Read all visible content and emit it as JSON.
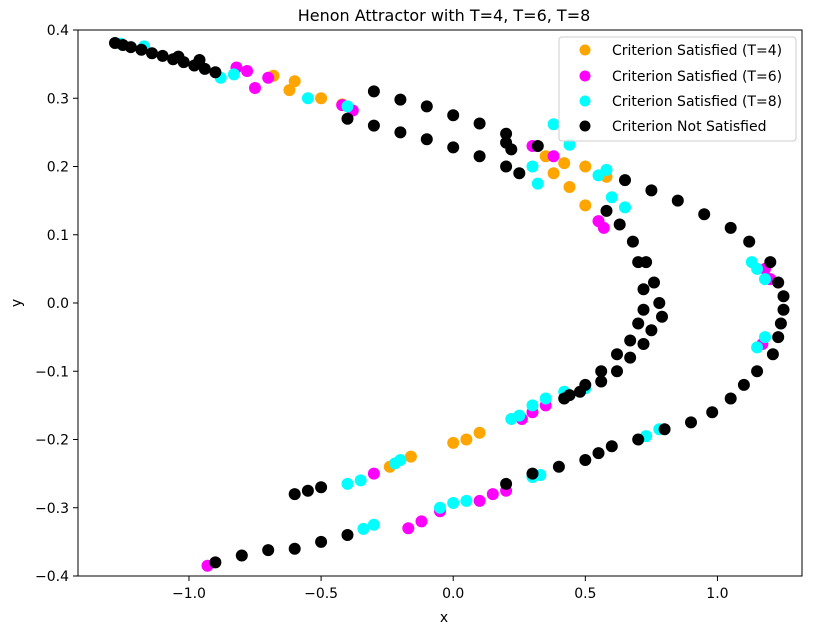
{
  "chart_data": {
    "type": "scatter",
    "title": "Henon Attractor with T=4, T=6, T=8",
    "xlabel": "x",
    "ylabel": "y",
    "xlim": [
      -1.42,
      1.32
    ],
    "ylim": [
      -0.4,
      0.4
    ],
    "x_ticks": [
      -1.0,
      -0.5,
      0.0,
      0.5,
      1.0
    ],
    "x_tick_labels": [
      "−1.0",
      "−0.5",
      "0.0",
      "0.5",
      "1.0"
    ],
    "y_ticks": [
      -0.4,
      -0.3,
      -0.2,
      -0.1,
      0.0,
      0.1,
      0.2,
      0.3,
      0.4
    ],
    "y_tick_labels": [
      "−0.4",
      "−0.3",
      "−0.2",
      "−0.1",
      "0.0",
      "0.1",
      "0.2",
      "0.3",
      "0.4"
    ],
    "grid": false,
    "legend_position": "top-right",
    "series": [
      {
        "name": "Criterion Satisfied (T=4)",
        "color": "#ffa500",
        "points": [
          [
            -0.68,
            0.333
          ],
          [
            -0.6,
            0.325
          ],
          [
            -0.62,
            0.312
          ],
          [
            -0.5,
            0.3
          ],
          [
            -0.42,
            0.291
          ],
          [
            0.35,
            0.215
          ],
          [
            0.42,
            0.205
          ],
          [
            0.5,
            0.2
          ],
          [
            0.58,
            0.185
          ],
          [
            0.38,
            0.19
          ],
          [
            0.44,
            0.17
          ],
          [
            0.5,
            0.143
          ],
          [
            -0.24,
            -0.24
          ],
          [
            -0.16,
            -0.225
          ],
          [
            0.0,
            -0.205
          ],
          [
            0.05,
            -0.2
          ],
          [
            0.1,
            -0.19
          ]
        ]
      },
      {
        "name": "Criterion Satisfied (T=6)",
        "color": "#ff00ff",
        "points": [
          [
            -0.93,
            -0.385
          ],
          [
            -0.3,
            -0.25
          ],
          [
            -0.7,
            0.33
          ],
          [
            -0.78,
            0.34
          ],
          [
            -0.82,
            0.345
          ],
          [
            -0.75,
            0.315
          ],
          [
            -0.38,
            0.282
          ],
          [
            -0.42,
            0.29
          ],
          [
            0.3,
            0.23
          ],
          [
            0.38,
            0.215
          ],
          [
            1.2,
            0.035
          ],
          [
            1.18,
            0.05
          ],
          [
            1.17,
            -0.06
          ],
          [
            0.55,
            0.12
          ],
          [
            0.57,
            0.11
          ],
          [
            0.3,
            -0.16
          ],
          [
            0.35,
            -0.15
          ],
          [
            0.26,
            -0.17
          ],
          [
            -0.17,
            -0.33
          ],
          [
            -0.12,
            -0.32
          ],
          [
            -0.05,
            -0.305
          ],
          [
            0.1,
            -0.29
          ],
          [
            0.15,
            -0.28
          ],
          [
            0.2,
            -0.275
          ]
        ]
      },
      {
        "name": "Criterion Satisfied (T=8)",
        "color": "#00ffff",
        "points": [
          [
            -1.26,
            0.38
          ],
          [
            -1.17,
            0.376
          ],
          [
            -0.83,
            0.335
          ],
          [
            -0.88,
            0.33
          ],
          [
            -0.55,
            0.3
          ],
          [
            -0.4,
            0.288
          ],
          [
            0.38,
            0.262
          ],
          [
            0.44,
            0.232
          ],
          [
            0.3,
            0.2
          ],
          [
            0.32,
            0.175
          ],
          [
            0.55,
            0.187
          ],
          [
            0.58,
            0.195
          ],
          [
            0.6,
            0.155
          ],
          [
            0.65,
            0.14
          ],
          [
            1.13,
            0.06
          ],
          [
            1.15,
            0.05
          ],
          [
            1.18,
            0.035
          ],
          [
            1.15,
            -0.065
          ],
          [
            1.18,
            -0.05
          ],
          [
            0.73,
            -0.195
          ],
          [
            0.78,
            -0.185
          ],
          [
            0.22,
            -0.17
          ],
          [
            0.25,
            -0.165
          ],
          [
            0.3,
            -0.15
          ],
          [
            0.35,
            -0.14
          ],
          [
            0.42,
            -0.13
          ],
          [
            0.5,
            -0.125
          ],
          [
            -0.4,
            -0.265
          ],
          [
            -0.35,
            -0.26
          ],
          [
            -0.22,
            -0.235
          ],
          [
            -0.2,
            -0.23
          ],
          [
            -0.34,
            -0.331
          ],
          [
            -0.3,
            -0.325
          ],
          [
            -0.05,
            -0.3
          ],
          [
            0.0,
            -0.293
          ],
          [
            0.05,
            -0.29
          ],
          [
            0.3,
            -0.255
          ],
          [
            0.33,
            -0.252
          ]
        ]
      },
      {
        "name": "Criterion Not Satisfied",
        "color": "#000000",
        "points": [
          [
            -1.28,
            0.381
          ],
          [
            -1.25,
            0.378
          ],
          [
            -1.22,
            0.375
          ],
          [
            -1.18,
            0.371
          ],
          [
            -1.14,
            0.366
          ],
          [
            -1.1,
            0.362
          ],
          [
            -1.06,
            0.357
          ],
          [
            -1.02,
            0.353
          ],
          [
            -0.98,
            0.348
          ],
          [
            -0.94,
            0.343
          ],
          [
            -0.9,
            0.338
          ],
          [
            -1.04,
            0.361
          ],
          [
            -0.96,
            0.356
          ],
          [
            -0.3,
            0.31
          ],
          [
            -0.2,
            0.298
          ],
          [
            -0.1,
            0.288
          ],
          [
            0.0,
            0.275
          ],
          [
            0.1,
            0.263
          ],
          [
            0.2,
            0.248
          ],
          [
            -0.4,
            0.27
          ],
          [
            -0.3,
            0.26
          ],
          [
            -0.2,
            0.25
          ],
          [
            -0.1,
            0.24
          ],
          [
            0.0,
            0.228
          ],
          [
            0.1,
            0.215
          ],
          [
            0.2,
            0.2
          ],
          [
            0.25,
            0.19
          ],
          [
            0.32,
            0.23
          ],
          [
            0.2,
            0.235
          ],
          [
            0.22,
            0.225
          ],
          [
            0.65,
            0.18
          ],
          [
            0.75,
            0.165
          ],
          [
            0.85,
            0.15
          ],
          [
            0.95,
            0.13
          ],
          [
            1.05,
            0.11
          ],
          [
            1.12,
            0.09
          ],
          [
            1.2,
            0.06
          ],
          [
            1.23,
            0.03
          ],
          [
            1.25,
            0.01
          ],
          [
            1.25,
            -0.01
          ],
          [
            1.24,
            -0.03
          ],
          [
            1.23,
            -0.05
          ],
          [
            1.21,
            -0.075
          ],
          [
            1.15,
            -0.1
          ],
          [
            1.1,
            -0.12
          ],
          [
            1.05,
            -0.14
          ],
          [
            0.98,
            -0.16
          ],
          [
            0.9,
            -0.175
          ],
          [
            0.8,
            -0.185
          ],
          [
            0.7,
            -0.2
          ],
          [
            0.6,
            -0.21
          ],
          [
            0.55,
            -0.22
          ],
          [
            0.5,
            -0.23
          ],
          [
            0.4,
            -0.24
          ],
          [
            0.3,
            -0.25
          ],
          [
            0.2,
            -0.265
          ],
          [
            -0.6,
            -0.36
          ],
          [
            -0.5,
            -0.35
          ],
          [
            -0.4,
            -0.34
          ],
          [
            -0.7,
            -0.362
          ],
          [
            -0.8,
            -0.37
          ],
          [
            -0.9,
            -0.38
          ],
          [
            0.58,
            0.135
          ],
          [
            0.63,
            0.115
          ],
          [
            0.68,
            0.09
          ],
          [
            0.73,
            0.06
          ],
          [
            0.76,
            0.03
          ],
          [
            0.78,
            0.0
          ],
          [
            0.79,
            -0.02
          ],
          [
            0.75,
            -0.04
          ],
          [
            0.72,
            -0.06
          ],
          [
            0.67,
            -0.08
          ],
          [
            0.62,
            -0.1
          ],
          [
            0.56,
            -0.115
          ],
          [
            0.48,
            -0.13
          ],
          [
            0.42,
            -0.14
          ],
          [
            0.7,
            0.06
          ],
          [
            0.72,
            0.02
          ],
          [
            0.72,
            -0.01
          ],
          [
            0.7,
            -0.03
          ],
          [
            0.67,
            -0.055
          ],
          [
            0.62,
            -0.075
          ],
          [
            0.56,
            -0.1
          ],
          [
            0.5,
            -0.12
          ],
          [
            0.44,
            -0.135
          ],
          [
            -0.6,
            -0.28
          ],
          [
            -0.55,
            -0.275
          ],
          [
            -0.5,
            -0.27
          ]
        ]
      }
    ]
  }
}
